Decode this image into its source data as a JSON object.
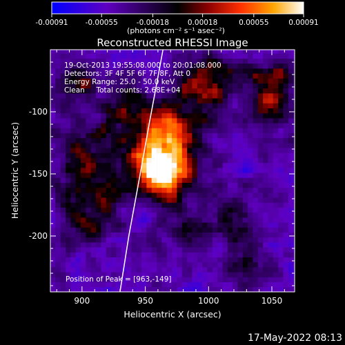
{
  "chart_data": {
    "type": "heatmap",
    "title": "Reconstructed RHESSI Image",
    "xlabel": "Heliocentric X (arcsec)",
    "ylabel": "Heliocentric Y (arcsec)",
    "xlim": [
      875,
      1068
    ],
    "ylim": [
      -245,
      -50
    ],
    "x_ticks": [
      900,
      950,
      1000,
      1050
    ],
    "y_ticks": [
      -100,
      -150,
      -200
    ],
    "colorbar": {
      "range": [
        -0.00091,
        0.00091
      ],
      "tick_values": [
        -0.00091,
        -0.00055,
        -0.00018,
        0.00018,
        0.00055,
        0.00091
      ],
      "tick_labels": [
        "-0.00091",
        "-0.00055",
        "-0.00018",
        "0.00018",
        "0.00055",
        "0.00091"
      ],
      "unit": "(photons cm⁻² s⁻¹ asec⁻²)",
      "colors": [
        "#0000ff",
        "#5f00c0",
        "#000000",
        "#8b0000",
        "#ff3000",
        "#ffa500",
        "#ffffff"
      ]
    },
    "info_lines": [
      "19-Oct-2013 19:55:08.000 to 20:01:08.000",
      "Detectors: 3F 4F 5F 6F 7F 8F, Att 0",
      "Energy Range: 25.0 - 50.0 keV",
      "Clean     Total counts: 2.68E+04"
    ],
    "peak_label": "Position of Peak = [963,-149]",
    "peak": {
      "x": 963,
      "y": -149
    },
    "limb_line": [
      [
        930,
        -245
      ],
      [
        937,
        -200
      ],
      [
        946,
        -150
      ],
      [
        953,
        -110
      ],
      [
        960,
        -72
      ],
      [
        964,
        -50
      ]
    ]
  },
  "footer": {
    "date": "17-May-2022 08:13"
  }
}
